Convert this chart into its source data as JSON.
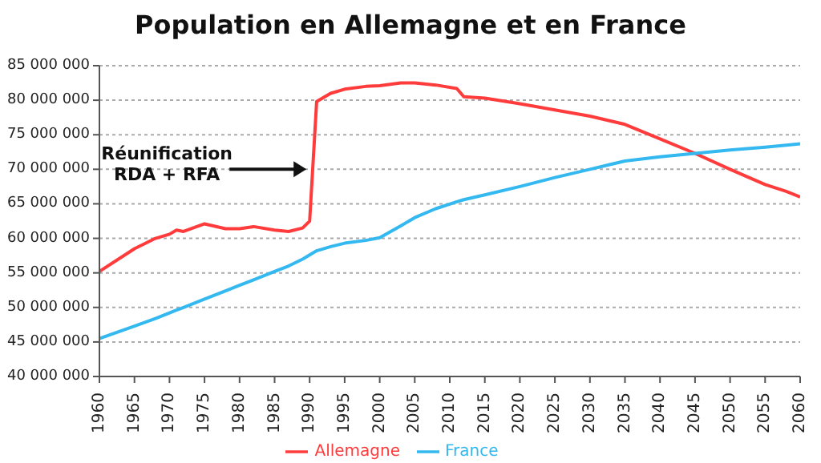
{
  "chart_data": {
    "type": "line",
    "title": "Population en Allemagne et en France",
    "x": [
      1960,
      1965,
      1968,
      1970,
      1971,
      1972,
      1975,
      1978,
      1980,
      1982,
      1985,
      1987,
      1989,
      1990,
      1991,
      1993,
      1995,
      1998,
      2000,
      2003,
      2005,
      2008,
      2011,
      2012,
      2015,
      2020,
      2025,
      2030,
      2035,
      2040,
      2045,
      2050,
      2055,
      2058,
      2060
    ],
    "series": [
      {
        "name": "Allemagne",
        "color": "#ff3b3b",
        "values": [
          55200000,
          58500000,
          60000000,
          60600000,
          61200000,
          61000000,
          62100000,
          61400000,
          61400000,
          61700000,
          61200000,
          61000000,
          61500000,
          62500000,
          79800000,
          81000000,
          81600000,
          82000000,
          82100000,
          82500000,
          82500000,
          82200000,
          81700000,
          80500000,
          80300000,
          79500000,
          78600000,
          77700000,
          76500000,
          74400000,
          72300000,
          70000000,
          67800000,
          66800000,
          66000000
        ]
      },
      {
        "name": "France",
        "color": "#33b8f0",
        "values": [
          45500000,
          47300000,
          48400000,
          49200000,
          49600000,
          50000000,
          51200000,
          52400000,
          53200000,
          54000000,
          55200000,
          56000000,
          57000000,
          57600000,
          58200000,
          58800000,
          59300000,
          59700000,
          60100000,
          61800000,
          63000000,
          64300000,
          65300000,
          65600000,
          66300000,
          67500000,
          68800000,
          70000000,
          71200000,
          71800000,
          72300000,
          72800000,
          73200000,
          73500000,
          73700000
        ]
      }
    ],
    "xlim": [
      1960,
      2060
    ],
    "xticks": [
      1960,
      1965,
      1970,
      1975,
      1980,
      1985,
      1990,
      1995,
      2000,
      2005,
      2010,
      2015,
      2020,
      2025,
      2030,
      2035,
      2040,
      2045,
      2050,
      2055,
      2060
    ],
    "ylim": [
      40000000,
      85000000
    ],
    "yticks": [
      {
        "value": 40000000,
        "label": "40 000 000"
      },
      {
        "value": 45000000,
        "label": "45 000 000"
      },
      {
        "value": 50000000,
        "label": "50 000 000"
      },
      {
        "value": 55000000,
        "label": "55 000 000"
      },
      {
        "value": 60000000,
        "label": "60 000 000"
      },
      {
        "value": 65000000,
        "label": "65 000 000"
      },
      {
        "value": 70000000,
        "label": "70 000 000"
      },
      {
        "value": 75000000,
        "label": "75 000 000"
      },
      {
        "value": 80000000,
        "label": "80 000 000"
      },
      {
        "value": 85000000,
        "label": "85 000 000"
      }
    ],
    "grid": "y",
    "legend": "bottom",
    "marker": "none",
    "line_style": "solid",
    "annotations": [
      {
        "text": "Réunification\nRDA + RFA",
        "x": 1990,
        "y": 70000000
      }
    ]
  }
}
